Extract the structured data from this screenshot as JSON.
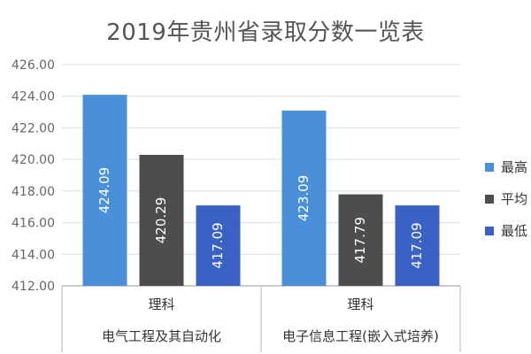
{
  "chart_data": {
    "type": "bar",
    "title": "2019年贵州省录取分数一览表",
    "ylim": [
      412,
      426
    ],
    "yticks": [
      "412.00",
      "414.00",
      "416.00",
      "418.00",
      "420.00",
      "422.00",
      "424.00",
      "426.00"
    ],
    "category_groups": [
      {
        "level1": "理科",
        "level2": "电气工程及其自动化"
      },
      {
        "level1": "理科",
        "level2": "电子信息工程(嵌入式培养)"
      }
    ],
    "series": [
      {
        "name": "最高",
        "color": "#4a90d9",
        "values": [
          424.09,
          423.09
        ]
      },
      {
        "name": "平均",
        "color": "#4d4d4d",
        "values": [
          420.29,
          417.79
        ]
      },
      {
        "name": "最低",
        "color": "#3a62c4",
        "values": [
          417.09,
          417.09
        ]
      }
    ],
    "value_labels": [
      [
        "424.09",
        "423.09"
      ],
      [
        "420.29",
        "417.79"
      ],
      [
        "417.09",
        "417.09"
      ]
    ],
    "grid": true,
    "legend_position": "right"
  }
}
